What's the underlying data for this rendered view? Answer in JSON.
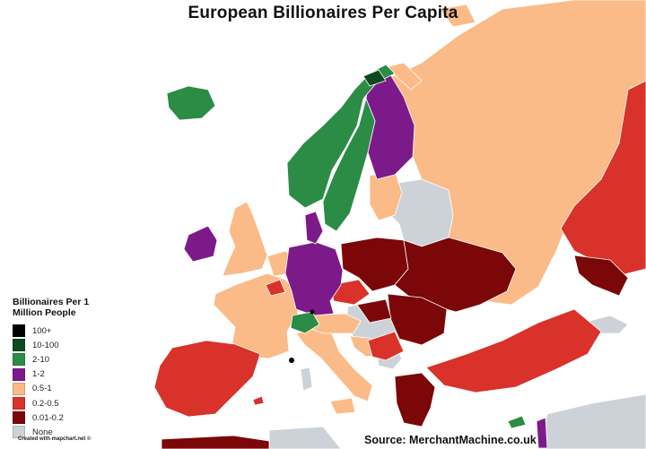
{
  "title": "European Billionaires Per Capita",
  "legend": {
    "title": "Billionaires Per 1 Million People",
    "items": [
      {
        "label": "100+",
        "color": "#000000"
      },
      {
        "label": "10-100",
        "color": "#0a4a1e"
      },
      {
        "label": "2-10",
        "color": "#2b8c45"
      },
      {
        "label": "1-2",
        "color": "#7d1a8a"
      },
      {
        "label": "0.5-1",
        "color": "#fbbb88"
      },
      {
        "label": "0.2-0.5",
        "color": "#d9322a"
      },
      {
        "label": "0.01-0.2",
        "color": "#7b0708"
      },
      {
        "label": "None",
        "color": "#ccd2d8"
      }
    ]
  },
  "colors": {
    "sea": "#ffffff",
    "outside": "#ccd2d8",
    "border": "#ffffff"
  },
  "credit": "Created with mapchart.net ©",
  "source": "Source: MerchantMachine.co.uk"
}
